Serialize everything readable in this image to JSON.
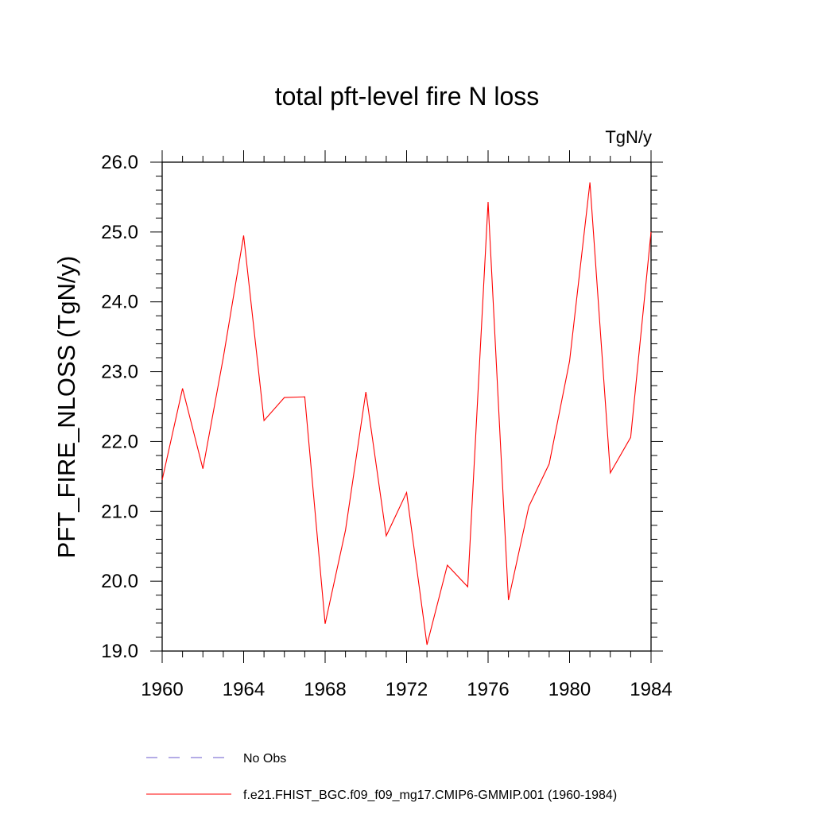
{
  "chart_data": {
    "type": "line",
    "title": "total pft-level fire N loss",
    "units_label": "TgN/y",
    "ylabel": "PFT_FIRE_NLOSS  (TgN/y)",
    "xlabel": "",
    "xlim": [
      1960,
      1984
    ],
    "ylim": [
      19.0,
      26.0
    ],
    "x_ticks": [
      "1960",
      "1964",
      "1968",
      "1972",
      "1976",
      "1980",
      "1984"
    ],
    "y_ticks": [
      "19.0",
      "20.0",
      "21.0",
      "22.0",
      "23.0",
      "24.0",
      "25.0",
      "26.0"
    ],
    "grid": false,
    "legend_position": "bottom",
    "x": [
      1960,
      1961,
      1962,
      1963,
      1964,
      1965,
      1966,
      1967,
      1968,
      1969,
      1970,
      1971,
      1972,
      1973,
      1974,
      1975,
      1976,
      1977,
      1978,
      1979,
      1980,
      1981,
      1982,
      1983,
      1984
    ],
    "series": [
      {
        "name": "f.e21.FHIST_BGC.f09_f09_mg17.CMIP6-GMMIP.001 (1960-1984)",
        "color": "#ff0000",
        "style": "solid",
        "values": [
          21.45,
          22.76,
          21.61,
          23.2,
          24.95,
          22.3,
          22.63,
          22.64,
          19.39,
          20.73,
          22.71,
          20.65,
          21.27,
          19.09,
          20.23,
          19.92,
          25.43,
          19.73,
          21.07,
          21.68,
          23.15,
          25.71,
          21.55,
          22.06,
          25.0
        ]
      }
    ],
    "legend": [
      {
        "label": "No Obs",
        "color": "#6a5acd",
        "style": "dashed"
      },
      {
        "label": "f.e21.FHIST_BGC.f09_f09_mg17.CMIP6-GMMIP.001 (1960-1984)",
        "color": "#ff0000",
        "style": "solid"
      }
    ]
  }
}
